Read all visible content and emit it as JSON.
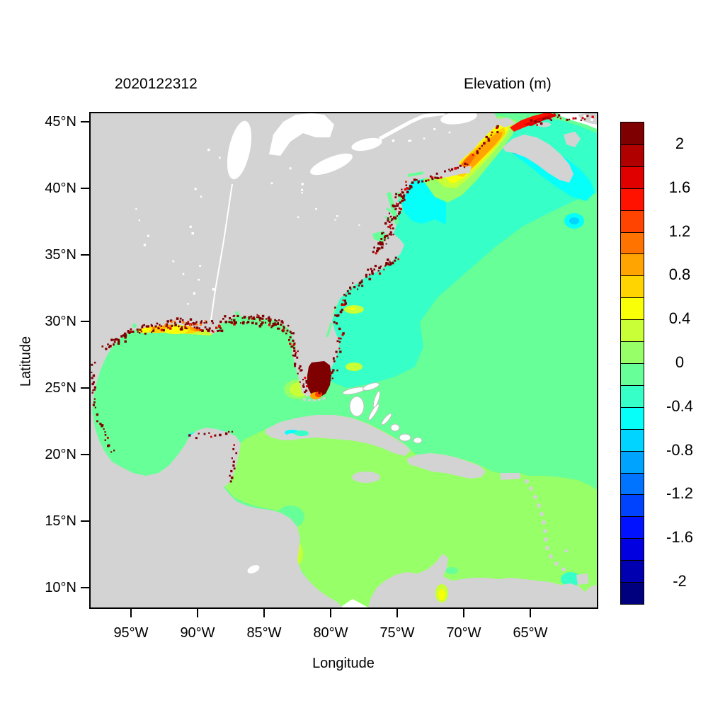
{
  "header": {
    "timestamp_title": "2020122312",
    "plot_title": "Elevation (m)"
  },
  "axes": {
    "x_label": "Longitude",
    "y_label": "Latitude",
    "x_ticks": [
      "95°W",
      "90°W",
      "85°W",
      "80°W",
      "75°W",
      "70°W",
      "65°W"
    ],
    "y_ticks": [
      "45°N",
      "40°N",
      "35°N",
      "30°N",
      "25°N",
      "20°N",
      "15°N",
      "10°N"
    ]
  },
  "colorbar": {
    "tick_labels": [
      "2",
      "1.6",
      "1.2",
      "0.8",
      "0.4",
      "0",
      "-0.4",
      "-0.8",
      "-1.2",
      "-1.6",
      "-2"
    ],
    "cell_colors_top_to_bottom": [
      "#7F0000",
      "#B00000",
      "#E00000",
      "#FF1200",
      "#FF4300",
      "#FF7300",
      "#FFA400",
      "#FFD400",
      "#F9FF06",
      "#C8FF36",
      "#97FF67",
      "#67FF97",
      "#36FFC8",
      "#06FFF9",
      "#00D4FF",
      "#00A4FF",
      "#0073FF",
      "#0043FF",
      "#0012FF",
      "#0000E0",
      "#0000B0",
      "#00007F"
    ]
  },
  "palette": {
    "land": "#D3D3D3",
    "nodata": "#FFFFFF",
    "v_p0": "#67FF97",
    "v_p1": "#97FF67",
    "v_p2": "#C8FF36",
    "v_p3": "#F9FF06",
    "v_p4": "#FFD400",
    "v_p5": "#FFA400",
    "v_p6": "#FF7300",
    "v_p7": "#FF4300",
    "v_p8": "#FF1200",
    "v_p9": "#E00000",
    "v_max": "#7F0000",
    "v_m1": "#36FFC8",
    "v_m2": "#06FFF9",
    "v_m3": "#00D4FF"
  },
  "chart_data": {
    "type": "heatmap",
    "subtype": "geospatial-filled-contour-map",
    "title": "Elevation (m)",
    "timestamp": "2020122312",
    "xlabel": "Longitude",
    "ylabel": "Latitude",
    "x_tick_labels": [
      "95°W",
      "90°W",
      "85°W",
      "80°W",
      "75°W",
      "70°W",
      "65°W"
    ],
    "y_tick_labels": [
      "45°N",
      "40°N",
      "35°N",
      "30°N",
      "25°N",
      "20°N",
      "15°N",
      "10°N"
    ],
    "xlim_longitude_west_deg": [
      98,
      60
    ],
    "ylim_latitude_north_deg": [
      8.5,
      45.6
    ],
    "grid": false,
    "legend_position": "right-colorbar",
    "colorbar": {
      "tick_labels": [
        "2",
        "1.6",
        "1.2",
        "0.8",
        "0.4",
        "0",
        "-0.4",
        "-0.8",
        "-1.2",
        "-1.6",
        "-2"
      ],
      "value_range": [
        -2.2,
        2.2
      ],
      "cell_size": 0.2,
      "n_cells": 22,
      "cell_colors_top_to_bottom": [
        "#7F0000",
        "#B00000",
        "#E00000",
        "#FF1200",
        "#FF4300",
        "#FF7300",
        "#FFA400",
        "#FFD400",
        "#F9FF06",
        "#C8FF36",
        "#97FF67",
        "#67FF97",
        "#36FFC8",
        "#06FFF9",
        "#00D4FF",
        "#00A4FF",
        "#0073FF",
        "#0043FF",
        "#0012FF",
        "#0000E0",
        "#0000B0",
        "#00007F"
      ]
    },
    "regions": [
      {
        "name": "Gulf of Mexico",
        "elevation_m": "-0.2 to 0"
      },
      {
        "name": "Caribbean Sea",
        "elevation_m": "0 to 0.2"
      },
      {
        "name": "Open Atlantic (east/south)",
        "elevation_m": "-0.2 to 0"
      },
      {
        "name": "US East Coast shelf band",
        "elevation_m": "-0.4 to -0.2"
      },
      {
        "name": "New Jersey / Delmarva offshore patch",
        "elevation_m": "-0.6 to -0.4"
      },
      {
        "name": "Georgia Bight patch",
        "elevation_m": "-0.6 to -0.4"
      },
      {
        "name": "Florida east coast / Bahamas tongue",
        "elevation_m": "-0.4 to -0.2"
      },
      {
        "name": "Gulf of Maine plume",
        "elevation_m": "0.2 to 1.0"
      },
      {
        "name": "Bay of Fundy / Nova Scotia head",
        "elevation_m": "1.4 to >2.2"
      },
      {
        "name": "Sea southeast of Nova Scotia",
        "elevation_m": "-0.8 to -0.4"
      },
      {
        "name": "South Florida / Everglades flooded area",
        "elevation_m": ">2.2"
      },
      {
        "name": "Pamlico Sound at Cape Hatteras",
        "elevation_m": "0.5 to >2.2"
      },
      {
        "name": "Louisiana / Texas coast patches",
        "elevation_m": "0.4 to 1.2"
      },
      {
        "name": "Nicaragua coast patch",
        "elevation_m": "0.4 to 0.6"
      },
      {
        "name": "Lake Maracaibo",
        "elevation_m": "0.3 to 0.5"
      },
      {
        "name": "Coastal flooded cells (dark red speckles)",
        "elevation_m": ">2.2"
      },
      {
        "name": "Land",
        "elevation_m": null
      },
      {
        "name": "Outside model domain (white)",
        "elevation_m": null
      }
    ]
  }
}
